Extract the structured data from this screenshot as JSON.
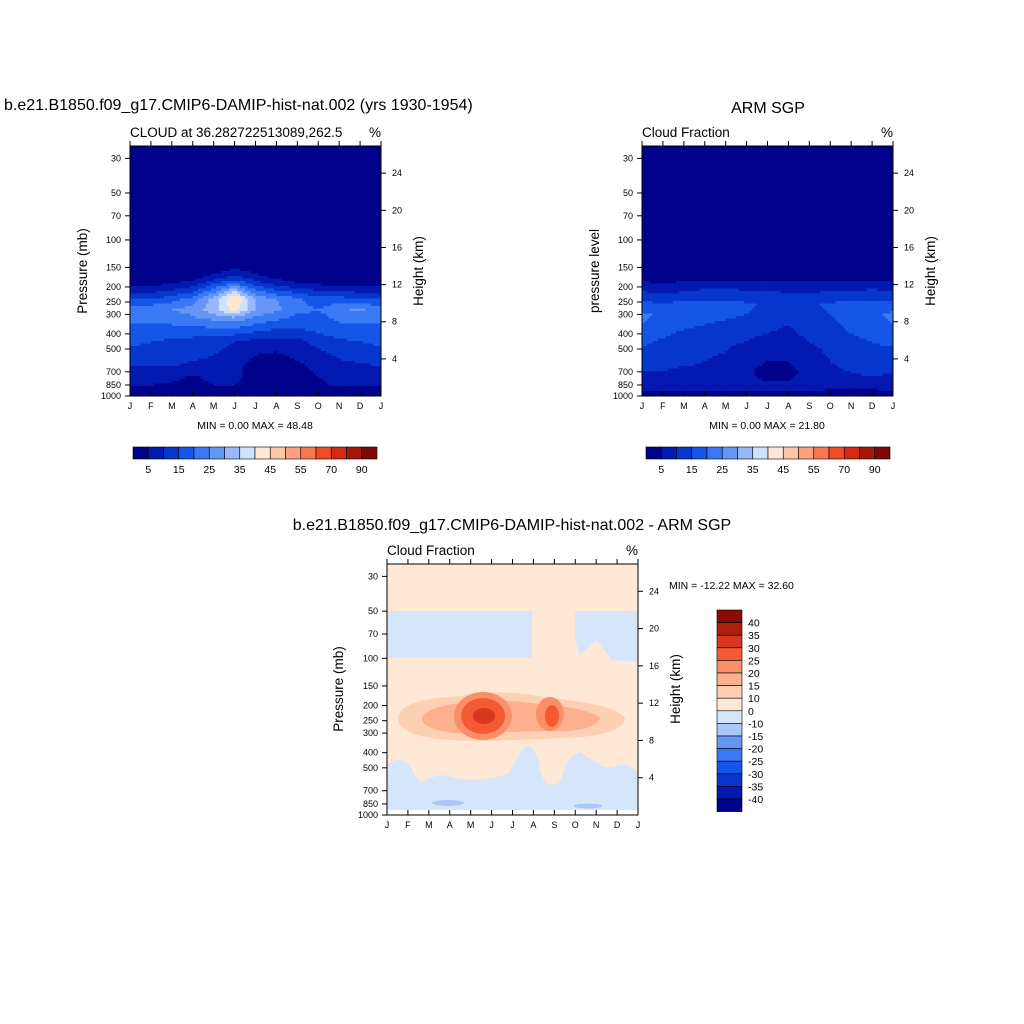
{
  "page_titles": {
    "top_left": "b.e21.B1850.f09_g17.CMIP6-DAMIP-hist-nat.002 (yrs 1930-1954)",
    "top_right": "ARM SGP",
    "bottom": "b.e21.B1850.f09_g17.CMIP6-DAMIP-hist-nat.002 - ARM SGP"
  },
  "chart_data": [
    {
      "id": "model",
      "type": "heatmap",
      "title": "CLOUD at 36.282722513089,262.5",
      "units": "%",
      "xlabel": "",
      "ylabel": "Pressure (mb)",
      "ylabel_right": "Height (km)",
      "x_ticks": [
        "J",
        "F",
        "M",
        "A",
        "M",
        "J",
        "J",
        "A",
        "S",
        "O",
        "N",
        "D",
        "J"
      ],
      "y_ticks": [
        30,
        50,
        70,
        100,
        150,
        200,
        250,
        300,
        400,
        500,
        700,
        850,
        1000
      ],
      "y_right_ticks": [
        24,
        20,
        16,
        12,
        8,
        4
      ],
      "y_scale": "log",
      "ylim": [
        1000,
        25
      ],
      "stats": "MIN =   0.00 MAX =  48.48",
      "colorbar": {
        "orientation": "horizontal",
        "levels": [
          5,
          10,
          15,
          20,
          25,
          30,
          35,
          40,
          45,
          50,
          55,
          60,
          70,
          80,
          90
        ],
        "labels": [
          "5",
          "15",
          "25",
          "35",
          "45",
          "55",
          "70",
          "90"
        ]
      },
      "profile": {
        "pressure": [
          25,
          120,
          150,
          170,
          190,
          210,
          240,
          280,
          320,
          380,
          450,
          550,
          650,
          750,
          850,
          950,
          1000
        ],
        "months": [
          "J",
          "F",
          "M",
          "A",
          "M",
          "J",
          "J",
          "A",
          "S",
          "O",
          "N",
          "D",
          "J"
        ],
        "values": [
          [
            0,
            0,
            0,
            0,
            0,
            0,
            0,
            0,
            0,
            0,
            0,
            0,
            0
          ],
          [
            0,
            0,
            0,
            0,
            0,
            0,
            0,
            0,
            0,
            0,
            0,
            0,
            0
          ],
          [
            0,
            0,
            0,
            0,
            1,
            4,
            2,
            0,
            0,
            0,
            0,
            0,
            0
          ],
          [
            0,
            0,
            0,
            2,
            6,
            10,
            6,
            3,
            2,
            1,
            0,
            0,
            0
          ],
          [
            2,
            3,
            5,
            7,
            14,
            20,
            12,
            8,
            5,
            4,
            3,
            2,
            2
          ],
          [
            8,
            8,
            10,
            13,
            22,
            33,
            20,
            15,
            12,
            10,
            9,
            8,
            8
          ],
          [
            15,
            15,
            18,
            22,
            32,
            46,
            30,
            25,
            21,
            17,
            17,
            16,
            15
          ],
          [
            22,
            24,
            25,
            27,
            33,
            42,
            30,
            26,
            22,
            20,
            24,
            26,
            22
          ],
          [
            22,
            22,
            22,
            24,
            26,
            28,
            23,
            21,
            18,
            18,
            21,
            22,
            22
          ],
          [
            18,
            18,
            18,
            18,
            18,
            18,
            16,
            14,
            14,
            16,
            18,
            18,
            18
          ],
          [
            16,
            15,
            14,
            13,
            12,
            10,
            8,
            8,
            8,
            12,
            14,
            15,
            16
          ],
          [
            13,
            13,
            12,
            11,
            10,
            8,
            5,
            4,
            6,
            8,
            11,
            12,
            13
          ],
          [
            10,
            10,
            10,
            9,
            8,
            6,
            3,
            3,
            4,
            6,
            8,
            9,
            10
          ],
          [
            8,
            8,
            7,
            4,
            7,
            6,
            3,
            4,
            4,
            5,
            7,
            8,
            8
          ],
          [
            6,
            5,
            4,
            3,
            5,
            5,
            3,
            3,
            3,
            4,
            6,
            6,
            6
          ],
          [
            2,
            2,
            2,
            2,
            2,
            2,
            2,
            2,
            2,
            2,
            2,
            2,
            2
          ],
          [
            0,
            0,
            0,
            0,
            0,
            0,
            0,
            0,
            0,
            0,
            0,
            0,
            0
          ]
        ]
      }
    },
    {
      "id": "obs",
      "type": "heatmap",
      "title": "Cloud Fraction",
      "units": "%",
      "xlabel": "",
      "ylabel": "pressure level",
      "ylabel_right": "Height (km)",
      "x_ticks": [
        "J",
        "F",
        "M",
        "A",
        "M",
        "J",
        "J",
        "A",
        "S",
        "O",
        "N",
        "D",
        "J"
      ],
      "y_ticks": [
        30,
        50,
        70,
        100,
        150,
        200,
        250,
        300,
        400,
        500,
        700,
        850,
        1000
      ],
      "y_right_ticks": [
        24,
        20,
        16,
        12,
        8,
        4
      ],
      "y_scale": "log",
      "ylim": [
        1000,
        25
      ],
      "stats": "MIN =   0.00 MAX =  21.80",
      "colorbar": {
        "orientation": "horizontal",
        "levels": [
          5,
          10,
          15,
          20,
          25,
          30,
          35,
          40,
          45,
          50,
          55,
          60,
          70,
          80,
          90
        ],
        "labels": [
          "5",
          "15",
          "25",
          "35",
          "45",
          "55",
          "70",
          "90"
        ]
      },
      "profile": {
        "pressure": [
          25,
          120,
          160,
          180,
          200,
          230,
          260,
          300,
          350,
          400,
          450,
          520,
          600,
          700,
          800,
          900,
          1000
        ],
        "months": [
          "J",
          "F",
          "M",
          "A",
          "M",
          "J",
          "J",
          "A",
          "S",
          "O",
          "N",
          "D",
          "J"
        ],
        "values": [
          [
            0,
            0,
            0,
            0,
            0,
            0,
            0,
            0,
            0,
            0,
            0,
            0,
            0
          ],
          [
            0,
            0,
            0,
            0,
            0,
            0,
            0,
            0,
            0,
            0,
            0,
            0,
            0
          ],
          [
            1,
            0,
            1,
            1,
            1,
            1,
            2,
            1,
            1,
            0,
            1,
            1,
            1
          ],
          [
            4,
            3,
            4,
            4,
            4,
            5,
            5,
            4,
            4,
            4,
            4,
            4,
            4
          ],
          [
            8,
            7,
            8,
            9,
            9,
            9,
            9,
            8,
            8,
            8,
            8,
            9,
            8
          ],
          [
            12,
            11,
            12,
            13,
            13,
            12,
            12,
            11,
            11,
            12,
            12,
            13,
            12
          ],
          [
            17,
            16,
            17,
            18,
            17,
            16,
            14,
            13,
            14,
            16,
            17,
            18,
            17
          ],
          [
            21,
            19,
            18,
            17,
            16,
            15,
            13,
            12,
            13,
            15,
            17,
            19,
            21
          ],
          [
            20,
            18,
            16,
            15,
            14,
            13,
            11,
            10,
            12,
            14,
            16,
            18,
            20
          ],
          [
            18,
            16,
            14,
            13,
            12,
            11,
            10,
            9,
            11,
            13,
            15,
            16,
            18
          ],
          [
            16,
            14,
            13,
            12,
            11,
            10,
            8,
            8,
            10,
            12,
            14,
            15,
            16
          ],
          [
            14,
            13,
            12,
            11,
            10,
            8,
            6,
            6,
            8,
            11,
            13,
            14,
            14
          ],
          [
            12,
            11,
            11,
            10,
            9,
            7,
            5,
            5,
            7,
            10,
            12,
            12,
            12
          ],
          [
            10,
            10,
            9,
            9,
            8,
            6,
            3,
            4,
            6,
            9,
            10,
            11,
            10
          ],
          [
            9,
            9,
            8,
            8,
            7,
            6,
            5,
            5,
            6,
            8,
            9,
            9,
            9
          ],
          [
            6,
            6,
            6,
            6,
            6,
            6,
            6,
            6,
            6,
            5,
            4,
            5,
            6
          ],
          [
            3,
            3,
            3,
            3,
            3,
            3,
            3,
            3,
            3,
            3,
            3,
            3,
            3
          ]
        ]
      }
    },
    {
      "id": "diff",
      "type": "heatmap",
      "title": "Cloud Fraction",
      "units": "%",
      "xlabel": "",
      "ylabel": "Pressure (mb)",
      "ylabel_right": "Height (km)",
      "x_ticks": [
        "J",
        "F",
        "M",
        "A",
        "M",
        "J",
        "J",
        "A",
        "S",
        "O",
        "N",
        "D",
        "J"
      ],
      "y_ticks": [
        30,
        50,
        70,
        100,
        150,
        200,
        250,
        300,
        400,
        500,
        700,
        850,
        1000
      ],
      "y_right_ticks": [
        24,
        20,
        16,
        12,
        8,
        4
      ],
      "y_scale": "log",
      "ylim": [
        1000,
        25
      ],
      "stats": "MIN = -12.22 MAX =  32.60",
      "colorbar": {
        "orientation": "vertical",
        "levels": [
          -40,
          -35,
          -30,
          -25,
          -20,
          -15,
          -10,
          0,
          10,
          15,
          20,
          25,
          30,
          35,
          40
        ],
        "labels": [
          "40",
          "35",
          "30",
          "25",
          "20",
          "15",
          "10",
          "0",
          "-10",
          "-15",
          "-20",
          "-25",
          "-30",
          "-35",
          "-40"
        ]
      }
    }
  ]
}
